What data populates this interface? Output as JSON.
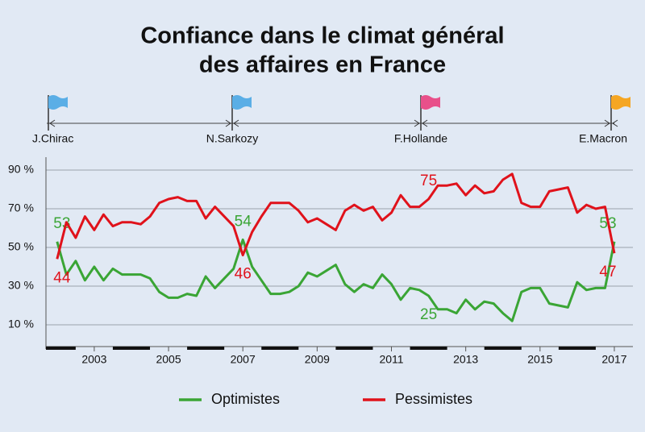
{
  "chart_data": {
    "type": "line",
    "title": [
      "Confiance dans le climat général",
      "des affaires en France"
    ],
    "presidents": [
      {
        "name": "J.Chirac",
        "color": "#5aaee6"
      },
      {
        "name": "N.Sarkozy",
        "color": "#5aaee6"
      },
      {
        "name": "F.Hollande",
        "color": "#e8508a"
      },
      {
        "name": "E.Macron",
        "color": "#f5a623"
      }
    ],
    "x": [
      2002,
      2002.25,
      2002.5,
      2002.75,
      2003,
      2003.25,
      2003.5,
      2003.75,
      2004,
      2004.25,
      2004.5,
      2004.75,
      2005,
      2005.25,
      2005.5,
      2005.75,
      2006,
      2006.25,
      2006.5,
      2006.75,
      2007,
      2007.25,
      2007.5,
      2007.75,
      2008,
      2008.25,
      2008.5,
      2008.75,
      2009,
      2009.25,
      2009.5,
      2009.75,
      2010,
      2010.25,
      2010.5,
      2010.75,
      2011,
      2011.25,
      2011.5,
      2011.75,
      2012,
      2012.25,
      2012.5,
      2012.75,
      2013,
      2013.25,
      2013.5,
      2013.75,
      2014,
      2014.25,
      2014.5,
      2014.75,
      2015,
      2015.25,
      2015.5,
      2015.75,
      2016,
      2016.25,
      2016.5,
      2016.75,
      2017
    ],
    "series": [
      {
        "name": "Optimistes",
        "color": "#3aa535",
        "values": [
          53,
          36,
          43,
          33,
          40,
          33,
          39,
          36,
          36,
          36,
          34,
          27,
          24,
          24,
          26,
          25,
          35,
          29,
          34,
          39,
          54,
          40,
          33,
          26,
          26,
          27,
          30,
          37,
          35,
          38,
          41,
          31,
          27,
          31,
          29,
          36,
          31,
          23,
          29,
          28,
          25,
          18,
          18,
          16,
          23,
          18,
          22,
          21,
          16,
          12,
          27,
          29,
          29,
          21,
          20,
          19,
          32,
          28,
          29,
          29,
          53
        ],
        "value_labels": [
          "53",
          null,
          null,
          null,
          null,
          null,
          null,
          null,
          null,
          null,
          null,
          null,
          null,
          null,
          null,
          null,
          null,
          null,
          null,
          null,
          "54",
          null,
          null,
          null,
          null,
          null,
          null,
          null,
          null,
          null,
          null,
          null,
          null,
          null,
          null,
          null,
          null,
          null,
          null,
          null,
          "25",
          null,
          null,
          null,
          null,
          null,
          null,
          null,
          null,
          null,
          null,
          null,
          null,
          null,
          null,
          null,
          null,
          null,
          null,
          null,
          "53"
        ]
      },
      {
        "name": "Pessimistes",
        "color": "#e0121b",
        "values": [
          44,
          63,
          55,
          66,
          59,
          67,
          61,
          63,
          63,
          62,
          66,
          73,
          75,
          76,
          74,
          74,
          65,
          71,
          66,
          61,
          46,
          58,
          66,
          73,
          73,
          73,
          69,
          63,
          65,
          62,
          59,
          69,
          72,
          69,
          71,
          64,
          68,
          77,
          71,
          71,
          75,
          82,
          82,
          83,
          77,
          82,
          78,
          79,
          85,
          88,
          73,
          71,
          71,
          79,
          80,
          81,
          68,
          72,
          70,
          71,
          47
        ],
        "value_labels": [
          "44",
          null,
          null,
          null,
          null,
          null,
          null,
          null,
          null,
          null,
          null,
          null,
          null,
          null,
          null,
          null,
          null,
          null,
          null,
          null,
          "46",
          null,
          null,
          null,
          null,
          null,
          null,
          null,
          null,
          null,
          null,
          null,
          null,
          null,
          null,
          null,
          null,
          null,
          null,
          null,
          "75",
          null,
          null,
          null,
          null,
          null,
          null,
          null,
          null,
          null,
          null,
          null,
          null,
          null,
          null,
          null,
          null,
          null,
          null,
          null,
          "47"
        ]
      }
    ],
    "xlim": [
      2001.7,
      2017.5
    ],
    "xticks": [
      2003,
      2005,
      2007,
      2009,
      2011,
      2013,
      2015,
      2017
    ],
    "ylim": [
      0,
      95
    ],
    "yticks": [
      {
        "value": 10,
        "label": "10 %"
      },
      {
        "value": 30,
        "label": "30 %"
      },
      {
        "value": 50,
        "label": "50 %"
      },
      {
        "value": 70,
        "label": "70 %"
      },
      {
        "value": 90,
        "label": "90 %"
      }
    ],
    "grid": true
  }
}
